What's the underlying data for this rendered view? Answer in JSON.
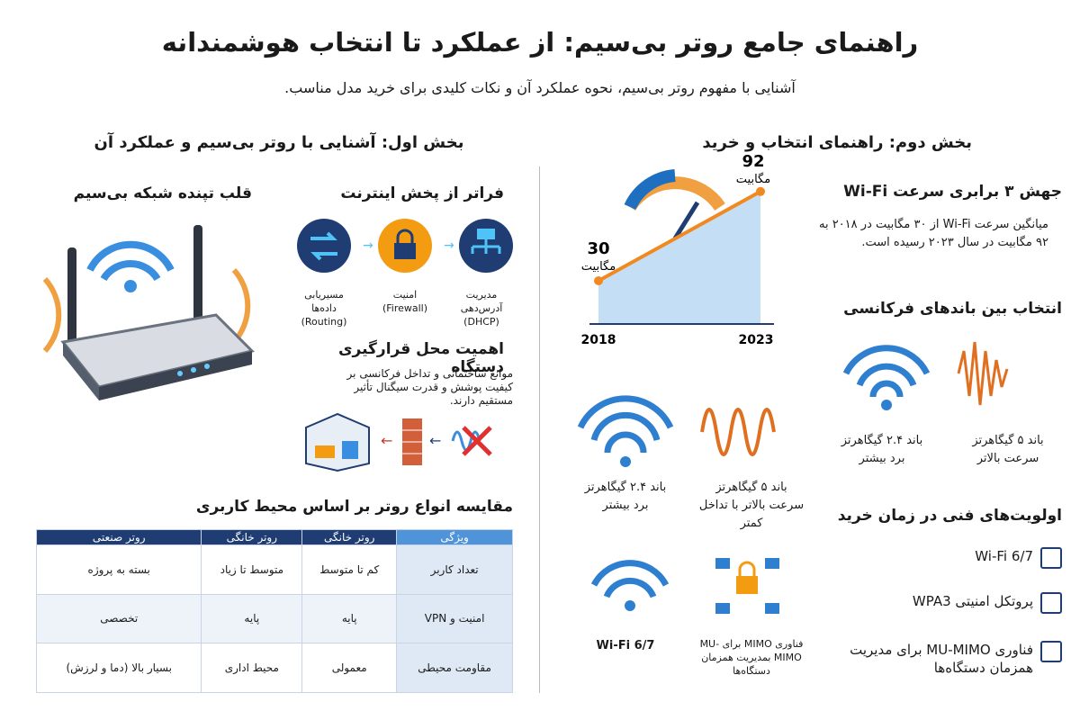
{
  "header": {
    "title": "راهنمای جامع روتر بی‌سیم: از عملکرد تا انتخاب هوشمندانه",
    "subtitle": "آشنایی با مفهوم روتر بی‌سیم، نحوه عملکرد آن و نکات کلیدی برای خرید مدل مناسب."
  },
  "part_one": {
    "title": "بخش اول: آشنایی با روتر بی‌سیم و عملکرد آن",
    "router_heading": "قلب تپنده شبکه بی‌سیم",
    "functions_heading": "فراتر از پخش اینترنت",
    "functions": [
      {
        "label": "مسیریابی داده‌ها",
        "sub": "(Routing)"
      },
      {
        "label": "امنیت",
        "sub": "(Firewall)"
      },
      {
        "label": "مدیریت آدرس‌دهی",
        "sub": "(DHCP)"
      }
    ],
    "placement_heading": "اهمیت محل قرارگیری دستگاه",
    "placement_text": "موانع ساختمانی و تداخل فرکانسی بر کیفیت پوشش و قدرت سیگنال تأثیر مستقیم دارند.",
    "table_title": "مقایسه انواع روتر بر اساس محیط کاربری",
    "table": {
      "header": [
        "ویژگی",
        "روتر خانگی",
        "روتر خانگی",
        "روتر صنعتی"
      ],
      "rows": [
        [
          "تعداد کاربر",
          "کم تا متوسط",
          "متوسط تا زیاد",
          "بسته به پروژه"
        ],
        [
          "امنیت و VPN",
          "پایه",
          "پایه",
          "تخصصی"
        ],
        [
          "مقاومت محیطی",
          "معمولی",
          "محیط اداری",
          "بسیار بالا (دما و لرزش)"
        ]
      ]
    }
  },
  "part_two": {
    "title": "بخش دوم: راهنمای انتخاب و خرید",
    "speed_chart": {
      "type": "line",
      "x": [
        "2018",
        "2023"
      ],
      "values": [
        30,
        92
      ],
      "unit": "مگابیت"
    },
    "speed_heading": "جهش ۳ برابری سرعت Wi-Fi",
    "speed_text": "میانگین سرعت Wi-Fi از ۳۰ مگابیت در ۲۰۱۸ به ۹۲ مگابیت در سال ۲۰۲۳ رسیده است.",
    "bands_heading": "انتخاب بین باندهای فرکانسی",
    "bands": [
      {
        "name": "باند ۵ گیگاهرتز",
        "note": "سرعت بالاتر"
      },
      {
        "name": "باند ۲.۴ گیگاهرتز",
        "note": "برد بیشتر"
      }
    ],
    "middle": [
      {
        "name": "باند ۲.۴ گیگاهرتز",
        "note": "برد بیشتر"
      },
      {
        "name": "باند ۵ گیگاهرتز",
        "note": "سرعت بالاتر با تداخل کمتر"
      },
      {
        "name": "Wi-Fi 6/7"
      },
      {
        "name": "فناوری MIMO برای MU-MIMO بمدیریت همزمان دستگاه‌ها"
      }
    ],
    "priorities_heading": "اولویت‌های فنی در زمان خرید",
    "priorities": [
      "Wi-Fi 6/7",
      "پروتکل امنیتی WPA3",
      "فناوری MU-MIMO برای مدیریت همزمان دستگاه‌ها"
    ]
  }
}
